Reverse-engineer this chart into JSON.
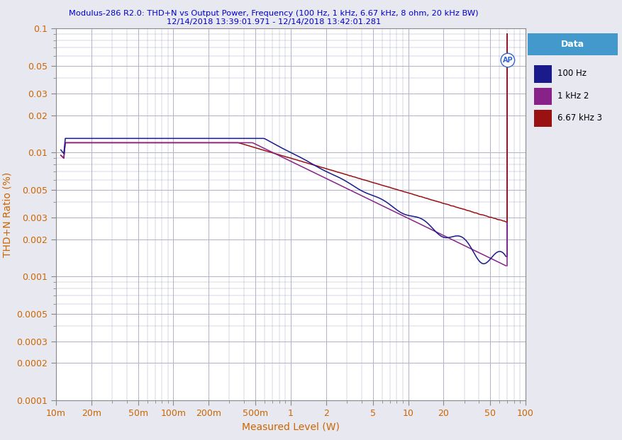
{
  "title_line1": "Modulus-286 R2.0: THD+N vs Output Power, Frequency (100 Hz, 1 kHz, 6.67 kHz, 8 ohm, 20 kHz BW)",
  "title_line2": "12/14/2018 13:39:01.971 - 12/14/2018 13:42:01.281",
  "xlabel": "Measured Level (W)",
  "ylabel": "THD+N Ratio (%)",
  "title_color": "#0000cc",
  "axis_label_color": "#cc6600",
  "tick_color": "#cc6600",
  "background_color": "#e8e8f0",
  "plot_bg_color": "#ffffff",
  "grid_color": "#b0b0cc",
  "legend_header_bg": "#4499cc",
  "legend_header_text": "Data",
  "series": [
    {
      "label": "100 Hz",
      "color": "#1a1a8c"
    },
    {
      "label": "1 kHz 2",
      "color": "#882288"
    },
    {
      "label": "6.67 kHz 3",
      "color": "#991111"
    }
  ],
  "xmin": 0.01,
  "xmax": 100,
  "ymin": 0.0001,
  "ymax": 0.1,
  "x_ticks": [
    0.01,
    0.02,
    0.05,
    0.1,
    0.2,
    0.5,
    1,
    2,
    5,
    10,
    20,
    50,
    100
  ],
  "x_tick_labels": [
    "10m",
    "20m",
    "50m",
    "100m",
    "200m",
    "500m",
    "1",
    "2",
    "5",
    "10",
    "20",
    "50",
    "100"
  ],
  "y_ticks": [
    0.0001,
    0.0002,
    0.0003,
    0.0005,
    0.001,
    0.002,
    0.003,
    0.005,
    0.01,
    0.02,
    0.03,
    0.05,
    0.1
  ],
  "y_tick_labels": [
    "0.0001",
    "0.0002",
    "0.0003",
    "0.0005",
    "0.001",
    "0.002",
    "0.003",
    "0.005",
    "0.01",
    "0.02",
    "0.03",
    "0.05",
    "0.1"
  ]
}
